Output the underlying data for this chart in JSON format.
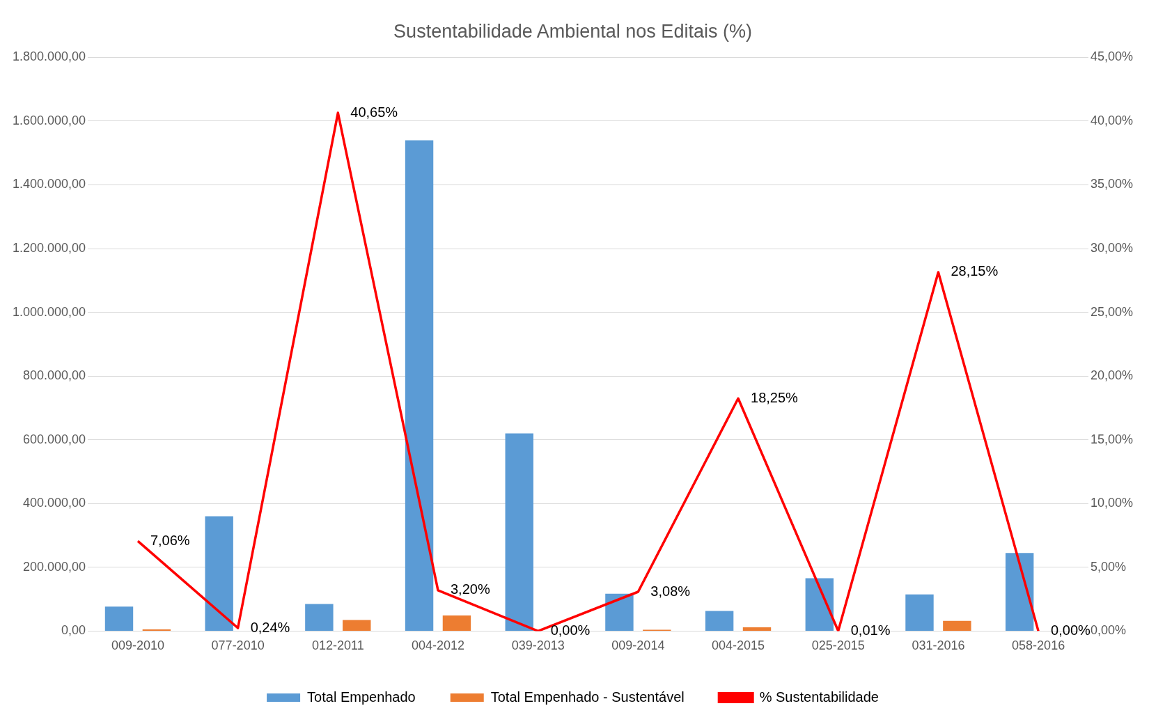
{
  "chart_data": {
    "type": "bar",
    "title": "Sustentabilidade Ambiental nos Editais (%)",
    "categories": [
      "009-2010",
      "077-2010",
      "012-2011",
      "004-2012",
      "039-2013",
      "009-2014",
      "004-2015",
      "025-2015",
      "031-2016",
      "058-2016"
    ],
    "series": [
      {
        "name": "Total Empenhado",
        "color": "#5b9bd5",
        "values": [
          77000,
          360000,
          85000,
          1540000,
          620000,
          117000,
          63000,
          166000,
          115000,
          245000
        ]
      },
      {
        "name": "Total Empenhado - Sustentável",
        "color": "#ed7d31",
        "values": [
          5000,
          1000,
          35000,
          49000,
          0,
          4000,
          12000,
          0,
          32000,
          0
        ]
      },
      {
        "name": "% Sustentabilidade",
        "type": "line",
        "axis": "y2",
        "color": "#ff0000",
        "values": [
          7.06,
          0.24,
          40.65,
          3.2,
          0,
          3.08,
          18.25,
          0.01,
          28.15,
          0
        ],
        "value_labels": [
          "7,06%",
          "0,24%",
          "40,65%",
          "3,20%",
          "0,00%",
          "3,08%",
          "18,25%",
          "0,01%",
          "28,15%",
          "0,00%"
        ]
      }
    ],
    "ylim": [
      0,
      1800000
    ],
    "yticks": [
      {
        "value": 0,
        "label": "0,00"
      },
      {
        "value": 200000,
        "label": "200.000,00"
      },
      {
        "value": 400000,
        "label": "400.000,00"
      },
      {
        "value": 600000,
        "label": "600.000,00"
      },
      {
        "value": 800000,
        "label": "800.000,00"
      },
      {
        "value": 1000000,
        "label": "1.000.000,00"
      },
      {
        "value": 1200000,
        "label": "1.200.000,00"
      },
      {
        "value": 1400000,
        "label": "1.400.000,00"
      },
      {
        "value": 1600000,
        "label": "1.600.000,00"
      },
      {
        "value": 1800000,
        "label": "1.800.000,00"
      }
    ],
    "y2lim": [
      0,
      45
    ],
    "y2ticks": [
      {
        "value": 0,
        "label": "0,00%"
      },
      {
        "value": 5,
        "label": "5,00%"
      },
      {
        "value": 10,
        "label": "10,00%"
      },
      {
        "value": 15,
        "label": "15,00%"
      },
      {
        "value": 20,
        "label": "20,00%"
      },
      {
        "value": 25,
        "label": "25,00%"
      },
      {
        "value": 30,
        "label": "30,00%"
      },
      {
        "value": 35,
        "label": "35,00%"
      },
      {
        "value": 40,
        "label": "40,00%"
      },
      {
        "value": 45,
        "label": "45,00%"
      }
    ],
    "grid": "y",
    "legend": "bottom",
    "marker": "none",
    "line_style": "solid"
  }
}
